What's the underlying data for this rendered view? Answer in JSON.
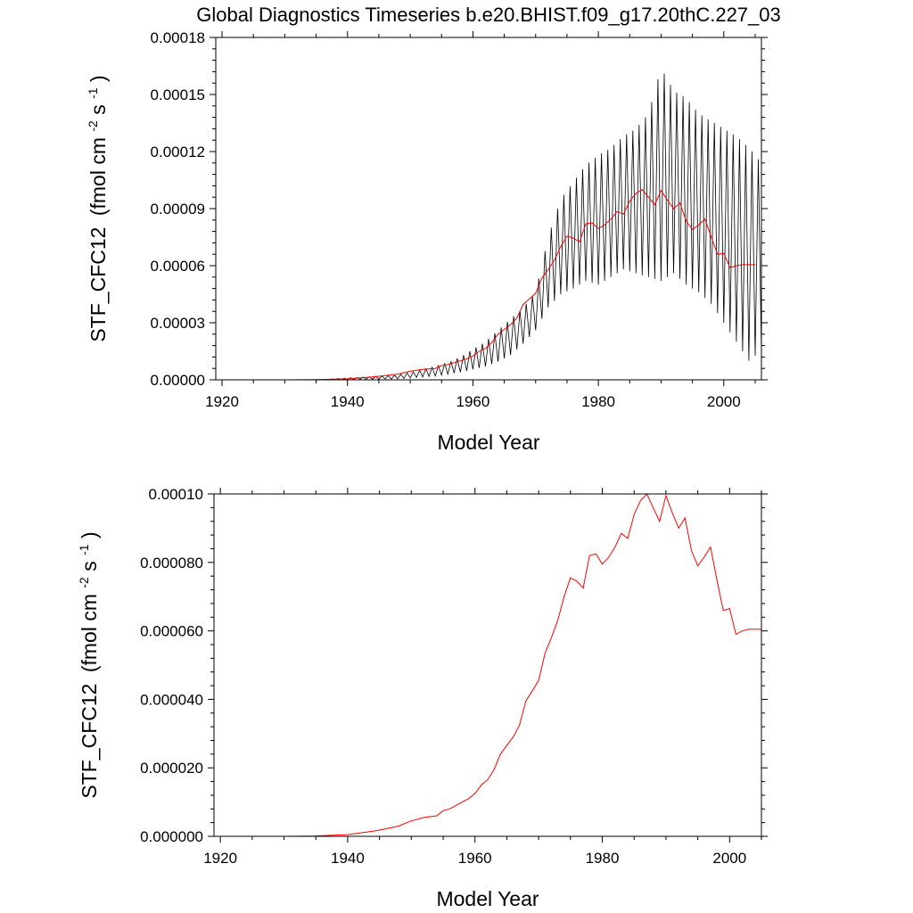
{
  "title": "Global Diagnostics Timeseries b.e20.BHIST.f09_g17.20thC.227_03",
  "colors": {
    "monthly_series": "#000000",
    "annual_series": "#ff0000",
    "axes": "#000000"
  },
  "chart_data": [
    {
      "type": "line",
      "xlabel": "Model Year",
      "ylabel": {
        "var": "STF_CFC12",
        "unit_open": "(fmol cm",
        "exp1": "-2",
        "mid": " s",
        "exp2": "-1",
        "unit_close": ")"
      },
      "xlim": [
        1919,
        2006
      ],
      "ylim": [
        0,
        0.00018
      ],
      "xticks": [
        1920,
        1940,
        1960,
        1980,
        2000
      ],
      "xtick_labels": [
        "1920",
        "1940",
        "1960",
        "1980",
        "2000"
      ],
      "yticks": [
        0,
        3e-05,
        6e-05,
        9e-05,
        0.00012,
        0.00015,
        0.00018
      ],
      "ytick_labels": [
        "0.00000",
        "0.00003",
        "0.00006",
        "0.00009",
        "0.00012",
        "0.00015",
        "0.00018"
      ],
      "grid": false,
      "series": [
        {
          "style": "monthly",
          "color": "#000000",
          "x": [
            1948,
            1950,
            1952,
            1954,
            1956,
            1958,
            1960,
            1962,
            1964,
            1966,
            1968,
            1970,
            1972,
            1974,
            1976,
            1978,
            1980,
            1982,
            1984,
            1986,
            1988,
            1990,
            1992,
            1994,
            1996,
            1998,
            2000,
            2002,
            2004,
            2005.5
          ],
          "max": [
            2.5e-06,
            4e-06,
            5.5e-06,
            7e-06,
            9e-06,
            1.2e-05,
            1.6e-05,
            2e-05,
            2.6e-05,
            3.2e-05,
            3.8e-05,
            4.6e-05,
            7.5e-05,
            9.5e-05,
            0.000104,
            0.000113,
            0.000118,
            0.000122,
            0.000128,
            0.000132,
            0.00014,
            0.000164,
            0.000152,
            0.000148,
            0.00014,
            0.000136,
            0.000132,
            0.000128,
            0.000122,
            0.000116
          ],
          "min": [
            5e-07,
            1e-06,
            1.5e-06,
            2e-06,
            3e-06,
            4e-06,
            5.5e-06,
            7e-06,
            9.5e-06,
            1.3e-05,
            1.9e-05,
            2.6e-05,
            3.8e-05,
            4.5e-05,
            4.8e-05,
            5.2e-05,
            5e-05,
            5.4e-05,
            5.8e-05,
            5.6e-05,
            5.4e-05,
            5.2e-05,
            5.6e-05,
            5e-05,
            4.6e-05,
            4e-05,
            3e-05,
            2e-05,
            1e-05,
            1.4e-05
          ]
        },
        {
          "style": "annual",
          "color": "#ff0000",
          "x": [
            1930,
            1935,
            1940,
            1944,
            1946,
            1948,
            1950,
            1952,
            1954,
            1955,
            1956,
            1957,
            1958,
            1959,
            1960,
            1961,
            1962,
            1963,
            1964,
            1965,
            1966,
            1967,
            1968,
            1969,
            1970,
            1971,
            1972,
            1973,
            1974,
            1975,
            1976,
            1977,
            1978,
            1979,
            1980,
            1981,
            1982,
            1983,
            1984,
            1985,
            1986,
            1987,
            1988,
            1989,
            1990,
            1991,
            1992,
            1993,
            1994,
            1995,
            1996,
            1997,
            1998,
            1999,
            2000,
            2001,
            2002,
            2003,
            2004,
            2005
          ],
          "y": [
            0,
            1e-07,
            5e-07,
            1.5e-06,
            2.2e-06,
            3e-06,
            4.5e-06,
            5.5e-06,
            6e-06,
            7.5e-06,
            8e-06,
            9e-06,
            1e-05,
            1.1e-05,
            1.25e-05,
            1.5e-05,
            1.65e-05,
            1.95e-05,
            2.4e-05,
            2.65e-05,
            2.9e-05,
            3.25e-05,
            3.95e-05,
            4.25e-05,
            4.55e-05,
            5.35e-05,
            5.8e-05,
            6.3e-05,
            7e-05,
            7.55e-05,
            7.45e-05,
            7.25e-05,
            8.2e-05,
            8.25e-05,
            7.95e-05,
            8.15e-05,
            8.45e-05,
            8.85e-05,
            8.7e-05,
            9.4e-05,
            9.8e-05,
            0.0001,
            9.6e-05,
            9.2e-05,
            9.95e-05,
            9.45e-05,
            9e-05,
            9.3e-05,
            8.35e-05,
            7.9e-05,
            8.15e-05,
            8.45e-05,
            7.5e-05,
            6.6e-05,
            6.65e-05,
            5.9e-05,
            6e-05,
            6.05e-05,
            6.05e-05,
            6.05e-05
          ]
        }
      ]
    },
    {
      "type": "line",
      "xlabel": "Model Year",
      "ylabel": {
        "var": "STF_CFC12",
        "unit_open": "(fmol cm",
        "exp1": "-2",
        "mid": " s",
        "exp2": "-1",
        "unit_close": ")"
      },
      "xlim": [
        1919,
        2005
      ],
      "ylim": [
        0,
        0.0001
      ],
      "xticks": [
        1920,
        1940,
        1960,
        1980,
        2000
      ],
      "xtick_labels": [
        "1920",
        "1940",
        "1960",
        "1980",
        "2000"
      ],
      "yticks": [
        0,
        2e-05,
        4e-05,
        6e-05,
        8e-05,
        0.0001
      ],
      "ytick_labels": [
        "0.000000",
        "0.000020",
        "0.000040",
        "0.000060",
        "0.000080",
        "0.00010"
      ],
      "grid": false,
      "series": [
        {
          "style": "annual",
          "color": "#ff0000",
          "x": [
            1930,
            1935,
            1940,
            1944,
            1946,
            1948,
            1950,
            1952,
            1954,
            1955,
            1956,
            1957,
            1958,
            1959,
            1960,
            1961,
            1962,
            1963,
            1964,
            1965,
            1966,
            1967,
            1968,
            1969,
            1970,
            1971,
            1972,
            1973,
            1974,
            1975,
            1976,
            1977,
            1978,
            1979,
            1980,
            1981,
            1982,
            1983,
            1984,
            1985,
            1986,
            1987,
            1988,
            1989,
            1990,
            1991,
            1992,
            1993,
            1994,
            1995,
            1996,
            1997,
            1998,
            1999,
            2000,
            2001,
            2002,
            2003,
            2004,
            2005
          ],
          "y": [
            0,
            1e-07,
            5e-07,
            1.5e-06,
            2.2e-06,
            3e-06,
            4.5e-06,
            5.5e-06,
            6e-06,
            7.5e-06,
            8e-06,
            9e-06,
            1e-05,
            1.1e-05,
            1.25e-05,
            1.5e-05,
            1.65e-05,
            1.95e-05,
            2.4e-05,
            2.65e-05,
            2.9e-05,
            3.25e-05,
            3.95e-05,
            4.25e-05,
            4.55e-05,
            5.35e-05,
            5.8e-05,
            6.3e-05,
            7e-05,
            7.55e-05,
            7.45e-05,
            7.25e-05,
            8.2e-05,
            8.25e-05,
            7.95e-05,
            8.15e-05,
            8.45e-05,
            8.85e-05,
            8.7e-05,
            9.4e-05,
            9.8e-05,
            0.0001,
            9.6e-05,
            9.2e-05,
            9.95e-05,
            9.45e-05,
            9e-05,
            9.3e-05,
            8.35e-05,
            7.9e-05,
            8.15e-05,
            8.45e-05,
            7.5e-05,
            6.6e-05,
            6.65e-05,
            5.9e-05,
            6e-05,
            6.05e-05,
            6.05e-05,
            6.05e-05
          ]
        }
      ]
    }
  ]
}
